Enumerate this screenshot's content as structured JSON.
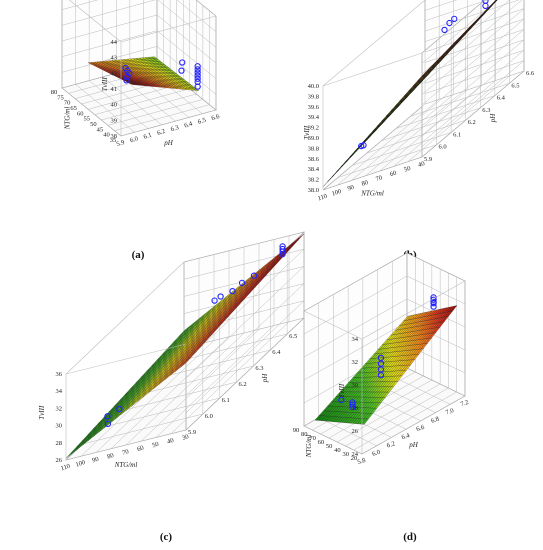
{
  "figure": {
    "panels": [
      "(a)",
      "(b)",
      "(c)",
      "(d)"
    ]
  },
  "chart_data": [
    {
      "type": "surface3d",
      "caption": "(a)",
      "zlabel": "TvIII",
      "xlabel": "pH",
      "ylabel": "NTG/ml",
      "x_ticks": [
        "5.9",
        "6.0",
        "6.1",
        "6.2",
        "6.3",
        "6.4",
        "6.5",
        "6.6"
      ],
      "y_ticks": [
        "35",
        "40",
        "45",
        "50",
        "55",
        "60",
        "65",
        "70",
        "75",
        "80"
      ],
      "z_ticks": [
        "38",
        "39",
        "40",
        "41",
        "42",
        "43",
        "44"
      ],
      "surface_z_range": [
        38.4,
        40.6
      ],
      "points_z": [
        39.8,
        39.6,
        39.4,
        39.2,
        39.0,
        40.5,
        40.6,
        40.5,
        40.3,
        40.1,
        39.9,
        39.7,
        39.5,
        39.2
      ]
    },
    {
      "type": "surface3d",
      "caption": "(b)",
      "zlabel": "TvIII",
      "xlabel": "NTG/ml",
      "ylabel": "pH",
      "x_ticks": [
        "110",
        "100",
        "90",
        "80",
        "70",
        "60",
        "50",
        "40"
      ],
      "y_ticks": [
        "5.9",
        "6.0",
        "6.1",
        "6.2",
        "6.3",
        "6.4",
        "6.5",
        "6.6"
      ],
      "z_ticks": [
        "38.0",
        "38.2",
        "38.4",
        "38.6",
        "38.8",
        "39.0",
        "39.2",
        "39.4",
        "39.6",
        "39.8",
        "40.0"
      ],
      "surface_z_range": [
        38.0,
        39.9
      ],
      "points_z": [
        38.3,
        38.4,
        39.4,
        39.5,
        39.6,
        39.8,
        39.9,
        40.0,
        40.1,
        40.2,
        40.3
      ]
    },
    {
      "type": "surface3d",
      "caption": "(c)",
      "zlabel": "TvIII",
      "xlabel": "NTG/ml",
      "ylabel": "pH",
      "x_ticks": [
        "110",
        "100",
        "90",
        "80",
        "70",
        "60",
        "50",
        "40",
        "30"
      ],
      "y_ticks": [
        "5.9",
        "6.0",
        "6.1",
        "6.2",
        "6.3",
        "6.4",
        "6.5",
        "6.6"
      ],
      "z_ticks": [
        "26",
        "28",
        "30",
        "32",
        "34",
        "36"
      ],
      "surface_z_range": [
        26.0,
        35.5
      ],
      "points_z": [
        27.0,
        27.5,
        28.5,
        33.5,
        33.8,
        33.6,
        34.0,
        34.3,
        35.0,
        35.3,
        35.6,
        35.9
      ]
    },
    {
      "type": "surface3d",
      "caption": "(d)",
      "zlabel": "TvIII",
      "xlabel": "pH",
      "ylabel": "NTG/ml",
      "x_ticks": [
        "5.8",
        "6.0",
        "6.2",
        "6.4",
        "6.6",
        "6.8",
        "7.0",
        "7.2"
      ],
      "y_ticks": [
        "20",
        "30",
        "40",
        "50",
        "60",
        "70",
        "80",
        "90"
      ],
      "z_ticks": [
        "24",
        "26",
        "28",
        "30",
        "32",
        "34"
      ],
      "surface_z_range": [
        24.5,
        32.0
      ],
      "points_z": [
        25.5,
        25.0,
        24.8,
        24.6,
        28.0,
        27.5,
        27.0,
        26.5,
        31.5,
        31.8,
        32.0,
        31.6,
        31.2
      ]
    }
  ]
}
